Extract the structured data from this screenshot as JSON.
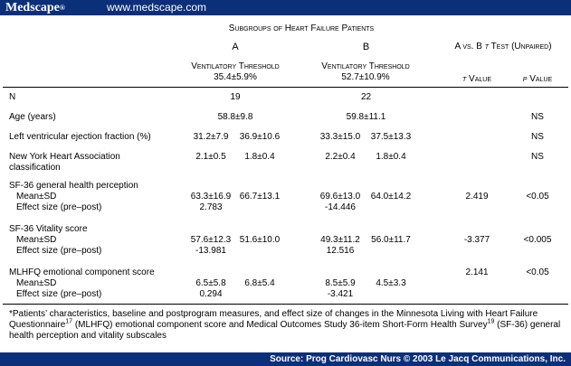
{
  "banner": {
    "logo": "Medscape",
    "logo_mark": "®",
    "url": "www.medscape.com"
  },
  "header": {
    "subgroups_title": "Subgroups of Heart Failure Patients",
    "group_a": "A",
    "group_b": "B",
    "comparison": "A vs. B ",
    "comparison_t": "t",
    "comparison_rest": " Test (Unpaired)",
    "a_threshold_label": "Ventilatory Threshold",
    "a_threshold_value": "35.4±5.9%",
    "b_threshold_label": "Ventilatory Threshold",
    "b_threshold_value": "52.7±10.9%",
    "t_value_italic": "t",
    "t_value_rest": " Value",
    "p_value_italic": "p",
    "p_value_rest": " Value"
  },
  "rows": {
    "n": {
      "label": "N",
      "a": "19",
      "b": "22"
    },
    "age": {
      "label": "Age (years)",
      "a": "58.8±9.8",
      "b": "59.8±11.1",
      "p": "NS"
    },
    "lvef": {
      "label": "Left ventricular ejection fraction (%)",
      "a1": "31.2±7.9",
      "a2": "36.9±10.6",
      "b1": "33.3±15.0",
      "b2": "37.5±13.3",
      "p": "NS"
    },
    "nyha": {
      "label1": "New York Heart Association",
      "label2": "classification",
      "a1": "2.1±0.5",
      "a2": "1.8±0.4",
      "b1": "2.2±0.4",
      "b2": "1.8±0.4",
      "p": "NS"
    },
    "sf36_gh": {
      "label": "SF-36 general health perception",
      "mean_label": "Mean±SD",
      "effect_label": "Effect size (pre–post)",
      "a1": "63.3±16.9",
      "a2": "66.7±13.1",
      "b1": "69.6±13.0",
      "b2": "64.0±14.2",
      "a_effect": "2.783",
      "b_effect": "-14.446",
      "t": "2.419",
      "p": "<0.05"
    },
    "sf36_v": {
      "label": "SF-36 Vitality score",
      "mean_label": "Mean±SD",
      "effect_label": "Effect size (pre–post)",
      "a1": "57.6±12.3",
      "a2": "51.6±10.0",
      "b1": "49.3±11.2",
      "b2": "56.0±11.7",
      "a_effect": "-13.981",
      "b_effect": "12.516",
      "t": "-3.377",
      "p": "<0.005"
    },
    "mlhfq": {
      "label": "MLHFQ emotional component score",
      "mean_label": "Mean±SD",
      "effect_label": "Effect size (pre–post)",
      "a1": "6.5±5.8",
      "a2": "6.8±5.4",
      "b1": "8.5±5.9",
      "b2": "4.5±3.3",
      "a_effect": "0.294",
      "b_effect": "-3.421",
      "t": "2.141",
      "p": "<0.05"
    }
  },
  "footnote": {
    "part1": "*Patients’ characteristics, baseline and postprogram measures, and effect size of changes in the Minnesota Living with Heart Failure Questionnaire",
    "sup1": "17",
    "part2": " (MLHFQ) emotional component score and Medical Outcomes Study 36-item Short-Form Health Survey",
    "sup2": "19",
    "part3": " (SF-36) general health perception and vitality subscales"
  },
  "source": "Source: Prog Cardiovasc Nurs © 2003 Le Jacq Communications, Inc.",
  "colors": {
    "banner": "#0c2f7a",
    "text": "#000000",
    "background": "#ffffff"
  }
}
